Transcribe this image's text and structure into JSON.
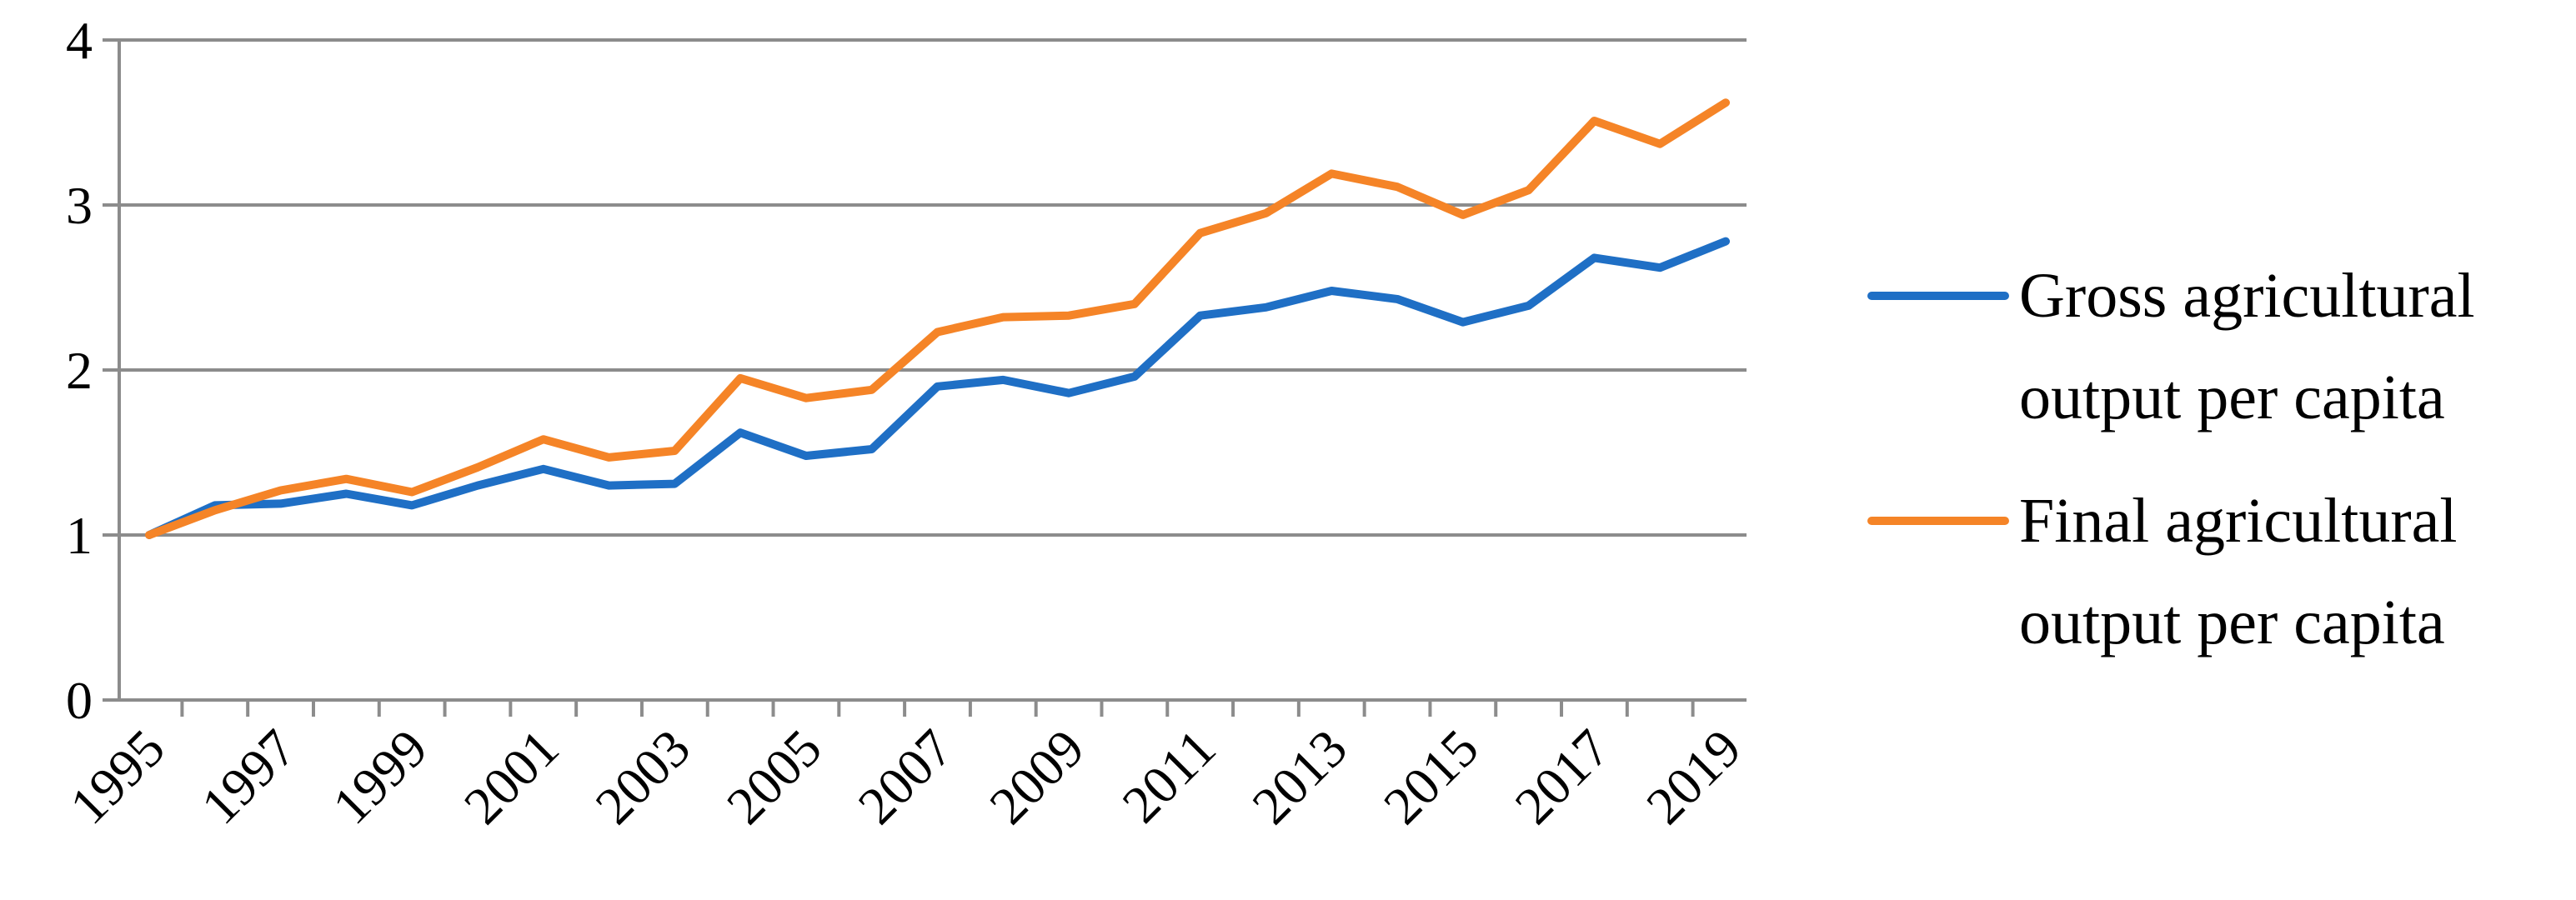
{
  "chart_data": {
    "type": "line",
    "title": "",
    "xlabel": "",
    "ylabel": "",
    "x": [
      1995,
      1996,
      1997,
      1998,
      1999,
      2000,
      2001,
      2002,
      2003,
      2004,
      2005,
      2006,
      2007,
      2008,
      2009,
      2010,
      2011,
      2012,
      2013,
      2014,
      2015,
      2016,
      2017,
      2018,
      2019
    ],
    "x_tick_labels": [
      "1995",
      "1997",
      "1999",
      "2001",
      "2003",
      "2005",
      "2007",
      "2009",
      "2011",
      "2013",
      "2015",
      "2017",
      "2019"
    ],
    "y_tick_labels": [
      "0",
      "1",
      "2",
      "3",
      "4"
    ],
    "ylim": [
      0,
      4
    ],
    "grid": "horizontal",
    "legend_position": "right",
    "series": [
      {
        "name": "Gross agricultural output per capita",
        "color": "#1f6fc5",
        "values": [
          1.0,
          1.18,
          1.19,
          1.25,
          1.18,
          1.3,
          1.4,
          1.3,
          1.31,
          1.62,
          1.48,
          1.52,
          1.9,
          1.94,
          1.86,
          1.96,
          2.33,
          2.38,
          2.48,
          2.43,
          2.29,
          2.39,
          2.68,
          2.62,
          2.78
        ]
      },
      {
        "name": "Final agricultural output per capita",
        "color": "#f58427",
        "values": [
          1.0,
          1.15,
          1.27,
          1.34,
          1.26,
          1.41,
          1.58,
          1.47,
          1.51,
          1.95,
          1.83,
          1.88,
          2.23,
          2.32,
          2.33,
          2.4,
          2.83,
          2.95,
          3.19,
          3.11,
          2.94,
          3.09,
          3.51,
          3.37,
          3.62
        ]
      }
    ],
    "legend_lines": [
      [
        "Gross agricultural",
        "output per capita"
      ],
      [
        "Final agricultural",
        "output per capita"
      ]
    ]
  }
}
